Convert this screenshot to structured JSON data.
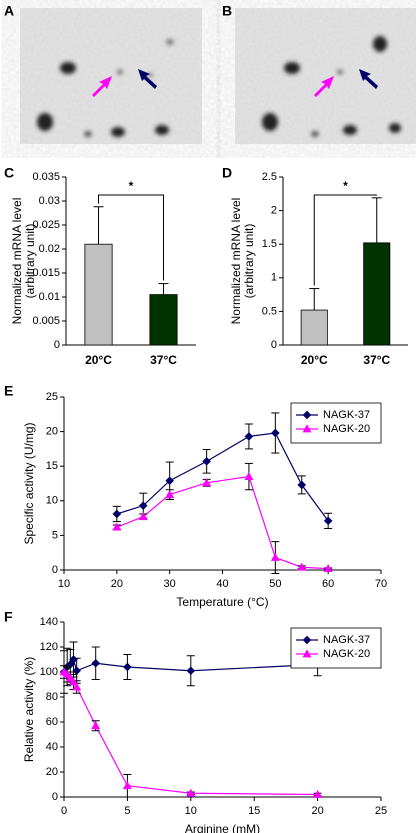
{
  "panel_labels": [
    "A",
    "B",
    "C",
    "D",
    "E",
    "F"
  ],
  "chart_data": [
    {
      "type": "bar",
      "categories": [
        "20°C",
        "37°C"
      ],
      "values": [
        0.021,
        0.0105
      ],
      "errors": [
        0.0078,
        0.0023
      ],
      "colors": [
        "#c0c0c0",
        "#003300"
      ],
      "ylabel": [
        "Normalized mRNA level",
        "(arbitrary unit)"
      ],
      "ylim": [
        0,
        0.035
      ],
      "yticks": [
        0,
        0.005,
        0.01,
        0.015,
        0.02,
        0.025,
        0.03,
        0.035
      ],
      "annotation": "*"
    },
    {
      "type": "bar",
      "categories": [
        "20°C",
        "37°C"
      ],
      "values": [
        0.52,
        1.52
      ],
      "errors": [
        0.32,
        0.67
      ],
      "colors": [
        "#c0c0c0",
        "#003300"
      ],
      "ylabel": [
        "Normalized mRNA level",
        "(arbitrary unit)"
      ],
      "ylim": [
        0,
        2.5
      ],
      "yticks": [
        0,
        0.5,
        1,
        1.5,
        2,
        2.5
      ],
      "annotation": "*"
    },
    {
      "type": "line",
      "xlabel": "Temperature (°C)",
      "ylabel": "Specific activity (U/mg)",
      "x": [
        20,
        25,
        30,
        37,
        45,
        50,
        55,
        60
      ],
      "series": [
        {
          "name": "NAGK-37",
          "color": "#000066",
          "marker": "diamond",
          "values": [
            8.1,
            9.3,
            12.9,
            15.7,
            19.3,
            19.8,
            12.3,
            7.1
          ],
          "errors": [
            1.1,
            1.8,
            2.7,
            1.7,
            1.8,
            2.9,
            1.3,
            1.1
          ]
        },
        {
          "name": "NAGK-20",
          "color": "#ff00ff",
          "marker": "triangle",
          "values": [
            6.2,
            7.7,
            10.9,
            12.6,
            13.5,
            1.8,
            0.4,
            0.2
          ],
          "errors": [
            0.3,
            0.4,
            0.7,
            0.5,
            1.9,
            2.3,
            0.2,
            0.1
          ]
        }
      ],
      "xlim": [
        10,
        70
      ],
      "xticks": [
        10,
        20,
        30,
        40,
        50,
        60,
        70
      ],
      "ylim": [
        0,
        25
      ],
      "yticks": [
        0,
        5,
        10,
        15,
        20,
        25
      ],
      "legend": "upper right"
    },
    {
      "type": "line",
      "xlabel": "Arginine (mM)",
      "ylabel": "Relative activity (%)",
      "x": [
        0,
        0.25,
        0.5,
        0.75,
        1,
        2.5,
        5,
        10,
        20
      ],
      "series": [
        {
          "name": "NAGK-37",
          "color": "#000066",
          "marker": "diamond",
          "values": [
            100,
            104,
            106,
            110,
            101,
            107,
            104,
            101,
            106
          ],
          "errors": [
            17,
            15,
            12,
            14,
            10,
            13,
            10,
            12,
            9
          ]
        },
        {
          "name": "NAGK-20",
          "color": "#ff00ff",
          "marker": "triangle",
          "values": [
            100,
            98,
            95,
            92,
            88,
            57,
            9,
            3,
            2
          ],
          "errors": [
            5,
            6,
            5,
            6,
            5,
            4,
            9,
            1,
            1
          ]
        }
      ],
      "xlim": [
        0,
        25
      ],
      "xticks": [
        0,
        5,
        10,
        15,
        20,
        25
      ],
      "ylim": [
        0,
        140
      ],
      "yticks": [
        0,
        20,
        40,
        60,
        80,
        100,
        120,
        140
      ],
      "legend": "upper right"
    }
  ]
}
